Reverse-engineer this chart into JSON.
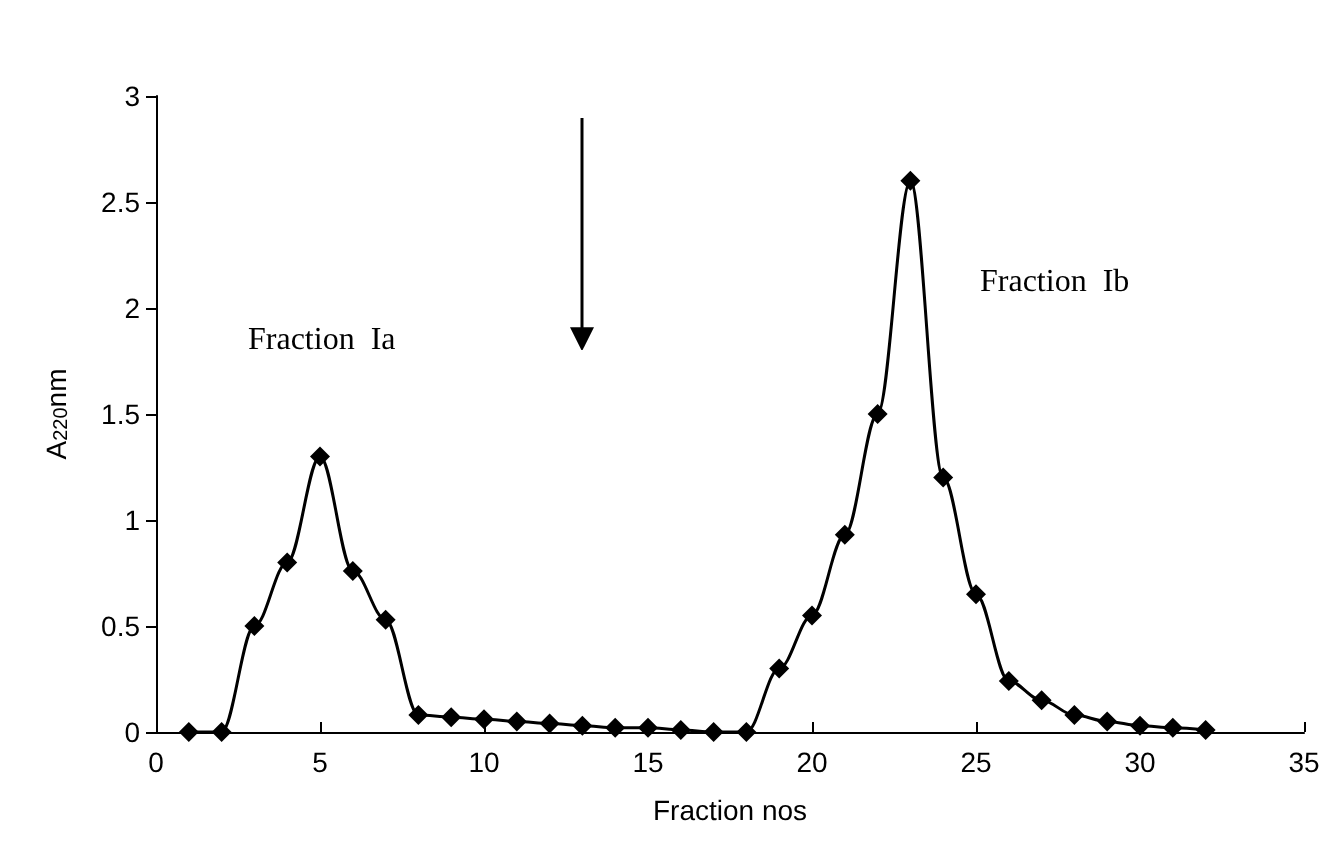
{
  "chart_data": {
    "type": "line",
    "xlabel": "Fraction nos",
    "ylabel": "A$_{220}$nm",
    "x": [
      1,
      2,
      3,
      4,
      5,
      6,
      7,
      8,
      9,
      10,
      11,
      12,
      13,
      14,
      15,
      16,
      17,
      18,
      19,
      20,
      21,
      22,
      23,
      24,
      25,
      26,
      27,
      28,
      29,
      30,
      31,
      32
    ],
    "series": [
      {
        "color": "#000000",
        "values": [
          0,
          0,
          0.5,
          0.8,
          1.3,
          0.76,
          0.53,
          0.08,
          0.07,
          0.06,
          0.05,
          0.04,
          0.03,
          0.02,
          0.02,
          0.01,
          0,
          0,
          0.3,
          0.55,
          0.93,
          1.5,
          2.6,
          1.2,
          0.65,
          0.24,
          0.15,
          0.08,
          0.05,
          0.03,
          0.02,
          0.01
        ]
      }
    ],
    "xlim": [
      0,
      35
    ],
    "xticks": [
      0,
      5,
      10,
      15,
      20,
      25,
      30,
      35
    ],
    "ylim": [
      0,
      3
    ],
    "yticks": [
      0,
      0.5,
      1,
      1.5,
      2,
      2.5,
      3
    ],
    "annotations": [
      "Fraction  Ia",
      "Fraction  Ib"
    ],
    "marker": "diamond",
    "line_style": "solid"
  }
}
